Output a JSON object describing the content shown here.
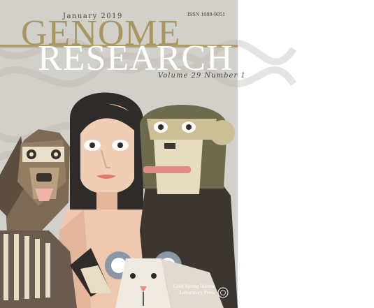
{
  "cover": {
    "issue_date": "January 2019",
    "issn": "ISSN 1088-9051",
    "title_line1": "GENOME",
    "title_line2": "RESEARCH",
    "volume_number": "Volume 29  Number 1",
    "publisher_line1": "Cold Spring Harbor",
    "publisher_line2": "Laboratory Press"
  },
  "colors": {
    "background": "#d2d0ca",
    "title_gold": "#a7975f",
    "title_white": "#ffffff"
  }
}
